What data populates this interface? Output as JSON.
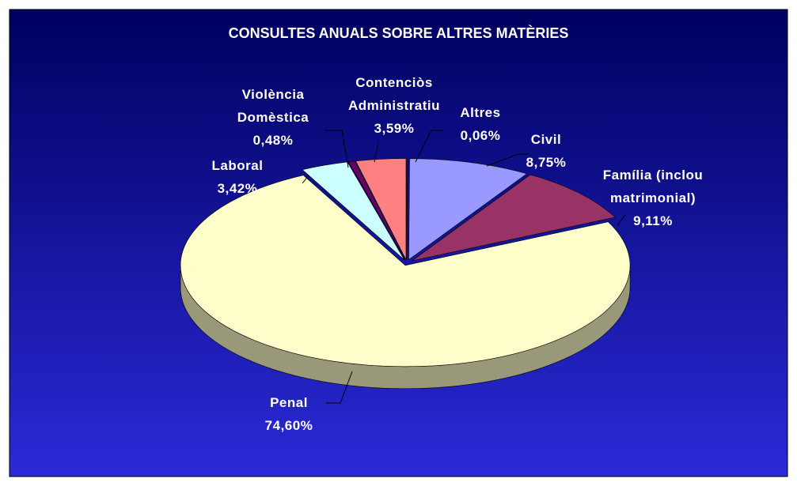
{
  "chart_data": {
    "type": "pie",
    "title": "CONSULTES ANUALS SOBRE ALTRES MATÈRIES",
    "categories": [
      "Altres",
      "Civil",
      "Família (inclou matrimonial)",
      "Penal",
      "Laboral",
      "Violència Domèstica",
      "Contenciòs Administratiu"
    ],
    "values": [
      0.06,
      8.75,
      9.11,
      74.6,
      3.42,
      0.48,
      3.59
    ],
    "value_labels": [
      "0,06%",
      "8,75%",
      "9,11%",
      "74,60%",
      "3,42%",
      "0,48%",
      "3,59%"
    ],
    "colors": [
      "#3333cc",
      "#9999ff",
      "#993366",
      "#ffffcc",
      "#ccffff",
      "#660066",
      "#ff8080"
    ]
  }
}
